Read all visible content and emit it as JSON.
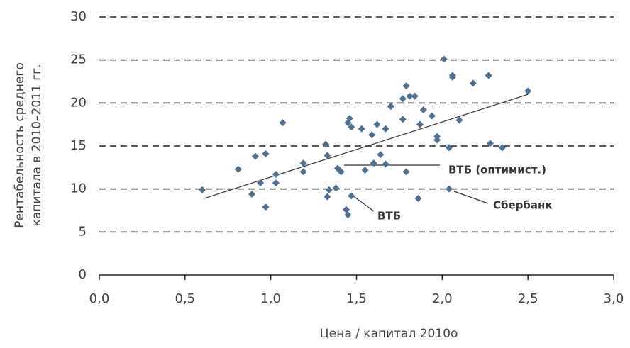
{
  "chart_data": {
    "type": "scatter",
    "x_label": "Цена / капитал 2010о",
    "y_label": [
      "Рентабельность среднего",
      "капитала в 2010–2011 гг."
    ],
    "xlim": [
      0,
      3
    ],
    "ylim": [
      0,
      30
    ],
    "xticks": [
      {
        "value": 0,
        "label": "0,0"
      },
      {
        "value": 0.5,
        "label": "0,5"
      },
      {
        "value": 1,
        "label": "1,0"
      },
      {
        "value": 1.5,
        "label": "1,5"
      },
      {
        "value": 2,
        "label": "2,0"
      },
      {
        "value": 2.5,
        "label": "2,5"
      },
      {
        "value": 3,
        "label": "3,0"
      }
    ],
    "yticks": [
      0,
      5,
      10,
      15,
      20,
      25,
      30
    ],
    "grid": true,
    "color": "#4d6f91",
    "x": [
      0.6,
      0.81,
      0.89,
      0.91,
      0.94,
      0.97,
      0.97,
      1.03,
      1.03,
      1.07,
      1.19,
      1.19,
      1.32,
      1.33,
      1.33,
      1.34,
      1.38,
      1.39,
      1.41,
      1.44,
      1.45,
      1.45,
      1.46,
      1.47,
      1.47,
      1.53,
      1.55,
      1.59,
      1.6,
      1.62,
      1.64,
      1.67,
      1.67,
      1.7,
      1.77,
      1.77,
      1.79,
      1.79,
      1.81,
      1.84,
      1.86,
      1.87,
      1.89,
      1.94,
      1.97,
      1.97,
      2.01,
      2.04,
      2.04,
      2.06,
      2.06,
      2.1,
      2.18,
      2.27,
      2.28,
      2.35,
      2.5
    ],
    "y": [
      9.9,
      12.3,
      9.4,
      13.8,
      10.7,
      7.9,
      14.1,
      11.7,
      10.7,
      17.7,
      13.0,
      12.0,
      15.2,
      13.9,
      9.1,
      9.9,
      10.1,
      12.4,
      12.0,
      7.6,
      7.0,
      17.7,
      18.2,
      17.2,
      9.2,
      17.0,
      12.2,
      16.3,
      13.0,
      17.5,
      14.0,
      12.9,
      17.0,
      19.6,
      18.1,
      20.5,
      22.0,
      12.0,
      20.8,
      20.8,
      8.9,
      17.5,
      19.2,
      18.5,
      16.1,
      15.7,
      25.1,
      14.8,
      10.0,
      23.0,
      23.2,
      18.0,
      22.3,
      23.2,
      15.3,
      14.8,
      21.4
    ],
    "trendline": {
      "x": [
        0.61,
        2.5
      ],
      "y": [
        8.9,
        21.0
      ]
    },
    "annotations": [
      "ВТБ (оптимист.)",
      "ВТБ",
      "Сбербанк"
    ]
  }
}
